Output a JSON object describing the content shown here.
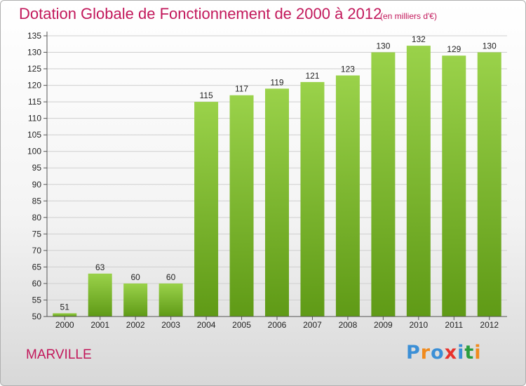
{
  "header": {
    "title": "Dotation Globale de Fonctionnement de 2000 à 2012",
    "unit_note": "(en milliers d'€)"
  },
  "footer": {
    "city": "MARVILLE",
    "brand": "Proxiti"
  },
  "colors": {
    "title": "#c2185b",
    "bar_top": "#9ad24a",
    "bar_bottom": "#5f9a16",
    "grid": "#cfcfcf",
    "brand_letters": [
      "#3b8fd6",
      "#f08a1c",
      "#3b8fd6",
      "#e8322c",
      "#3b8fd6",
      "#2a9d3f",
      "#f08a1c"
    ]
  },
  "chart_data": {
    "type": "bar",
    "title": "Dotation Globale de Fonctionnement de 2000 à 2012",
    "subtitle": "(en milliers d'€)",
    "xlabel": "",
    "ylabel": "",
    "categories": [
      "2000",
      "2001",
      "2002",
      "2003",
      "2004",
      "2005",
      "2006",
      "2007",
      "2008",
      "2009",
      "2010",
      "2011",
      "2012"
    ],
    "values": [
      51,
      63,
      60,
      60,
      115,
      117,
      119,
      121,
      123,
      130,
      132,
      129,
      130
    ],
    "ylim": [
      50,
      135
    ],
    "yticks": [
      50,
      55,
      60,
      65,
      70,
      75,
      80,
      85,
      90,
      95,
      100,
      105,
      110,
      115,
      120,
      125,
      130,
      135
    ],
    "grid": true,
    "data_labels": true,
    "legend": "none"
  }
}
